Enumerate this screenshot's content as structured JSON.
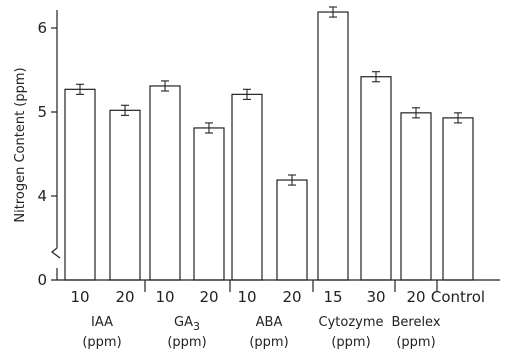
{
  "chart_data": {
    "type": "bar",
    "ylabel": "Nitrogen Content (ppm)",
    "y_ticks": [
      "6",
      "5",
      "4",
      "0"
    ],
    "ylim_shown": [
      3.5,
      6.3
    ],
    "axis_break": true,
    "categories": [
      "10",
      "20",
      "10",
      "20",
      "10",
      "20",
      "15",
      "30",
      "20",
      "Control"
    ],
    "values": [
      5.27,
      5.02,
      5.31,
      4.81,
      5.21,
      4.19,
      6.19,
      5.42,
      4.99,
      4.93
    ],
    "errors": [
      0.06,
      0.06,
      0.06,
      0.06,
      0.06,
      0.06,
      0.06,
      0.06,
      0.06,
      0.06
    ],
    "groups": [
      {
        "name": "IAA",
        "unit": "(ppm)"
      },
      {
        "name": "GA3",
        "unit": "(ppm)"
      },
      {
        "name": "ABA",
        "unit": "(ppm)"
      },
      {
        "name": "Cytozyme",
        "unit": "(ppm)"
      },
      {
        "name": "Berelex",
        "unit": "(ppm)"
      }
    ],
    "grid": false
  }
}
